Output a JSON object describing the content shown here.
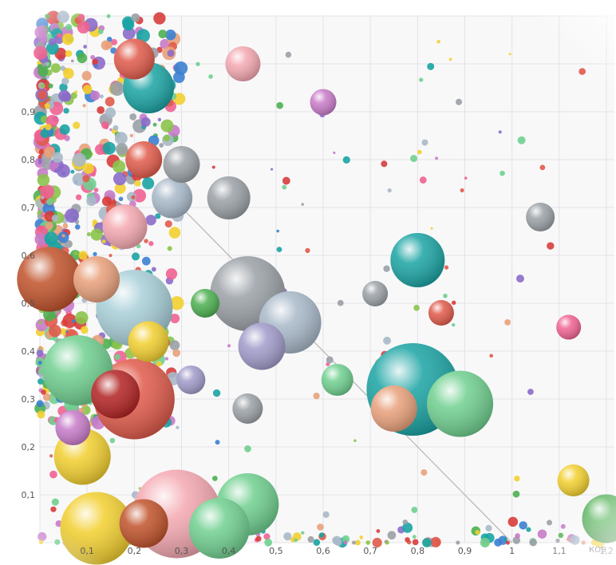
{
  "chart_data": {
    "type": "scatter",
    "subtype": "bubble",
    "xlabel": "КОЭ",
    "ylabel": "",
    "xlim": [
      0.0,
      1.2
    ],
    "ylim": [
      0.0,
      1.0
    ],
    "x_ticks": [
      "0,1",
      "0,2",
      "0,3",
      "0,4",
      "0,5",
      "0,6",
      "0,7",
      "0,8",
      "0,9",
      "1",
      "1,1",
      "1,2"
    ],
    "y_ticks": [
      "0,1",
      "0,2",
      "0,3",
      "0,4",
      "0,5",
      "0,6",
      "0,7",
      "0,8",
      "0,9"
    ],
    "grid": true,
    "legend": "none",
    "reference_line": {
      "from": [
        0.3,
        0.7
      ],
      "to": [
        1.0,
        0.0
      ]
    },
    "colors": [
      "#1aa3a3",
      "#e05a4a",
      "#6fcf8f",
      "#f2cf2e",
      "#a8b8c8",
      "#c77ac8",
      "#e8a07a",
      "#9aa0a6",
      "#3b7fd1",
      "#8a6cc9",
      "#d83c3c",
      "#4caf50",
      "#8bc34a",
      "#f06292"
    ],
    "points": [
      {
        "x": 0.79,
        "y": 0.32,
        "size": 1.0,
        "color": "#1aa3a3"
      },
      {
        "x": 0.89,
        "y": 0.29,
        "size": 0.67,
        "color": "#6fcf8f"
      },
      {
        "x": 0.75,
        "y": 0.28,
        "size": 0.42,
        "color": "#e8a07a"
      },
      {
        "x": 0.8,
        "y": 0.59,
        "size": 0.52,
        "color": "#1aa3a3"
      },
      {
        "x": 0.44,
        "y": 0.52,
        "size": 0.78,
        "color": "#9aa0a6"
      },
      {
        "x": 0.53,
        "y": 0.46,
        "size": 0.62,
        "color": "#a8b8c8"
      },
      {
        "x": 0.47,
        "y": 0.41,
        "size": 0.43,
        "color": "#a09ac9"
      },
      {
        "x": 0.2,
        "y": 0.49,
        "size": 0.8,
        "color": "#a8cfd8"
      },
      {
        "x": 0.2,
        "y": 0.3,
        "size": 0.85,
        "color": "#e05a4a"
      },
      {
        "x": 0.16,
        "y": 0.31,
        "size": 0.45,
        "color": "#b22222"
      },
      {
        "x": 0.08,
        "y": 0.36,
        "size": 0.72,
        "color": "#6fcf8f"
      },
      {
        "x": 0.09,
        "y": 0.18,
        "size": 0.55,
        "color": "#f2cf2e"
      },
      {
        "x": 0.29,
        "y": 0.06,
        "size": 0.95,
        "color": "#f4a7b0"
      },
      {
        "x": 0.44,
        "y": 0.08,
        "size": 0.62,
        "color": "#6fcf8f"
      },
      {
        "x": 0.12,
        "y": 0.03,
        "size": 0.75,
        "color": "#f2cf2e"
      },
      {
        "x": 0.22,
        "y": 0.04,
        "size": 0.45,
        "color": "#c0522a"
      },
      {
        "x": 0.38,
        "y": 0.03,
        "size": 0.6,
        "color": "#6fcf8f"
      },
      {
        "x": 0.23,
        "y": 0.42,
        "size": 0.35,
        "color": "#f2cf2e"
      },
      {
        "x": 0.4,
        "y": 0.72,
        "size": 0.38,
        "color": "#9aa0a6"
      },
      {
        "x": 0.3,
        "y": 0.79,
        "size": 0.3,
        "color": "#9aa0a6"
      },
      {
        "x": 0.28,
        "y": 0.72,
        "size": 0.35,
        "color": "#a8b8c8"
      },
      {
        "x": 0.22,
        "y": 0.8,
        "size": 0.3,
        "color": "#e05a4a"
      },
      {
        "x": 0.23,
        "y": 0.95,
        "size": 0.48,
        "color": "#1aa3a3"
      },
      {
        "x": 0.2,
        "y": 1.01,
        "size": 0.35,
        "color": "#e05a4a"
      },
      {
        "x": 0.43,
        "y": 1.0,
        "size": 0.28,
        "color": "#f4a7b0"
      },
      {
        "x": 1.06,
        "y": 0.68,
        "size": 0.2,
        "color": "#9aa0a6"
      },
      {
        "x": 1.13,
        "y": 0.13,
        "size": 0.24,
        "color": "#f2cf2e"
      },
      {
        "x": 1.2,
        "y": 0.05,
        "size": 0.45,
        "color": "#4caf50"
      },
      {
        "x": 0.63,
        "y": 0.34,
        "size": 0.24,
        "color": "#6fcf8f"
      },
      {
        "x": 0.02,
        "y": 0.55,
        "size": 0.65,
        "color": "#c0522a"
      },
      {
        "x": 0.44,
        "y": 0.28,
        "size": 0.22,
        "color": "#9aa0a6"
      },
      {
        "x": 0.6,
        "y": 0.92,
        "size": 0.17,
        "color": "#c77ac8"
      },
      {
        "x": 0.71,
        "y": 0.52,
        "size": 0.16,
        "color": "#9aa0a6"
      },
      {
        "x": 0.85,
        "y": 0.48,
        "size": 0.16,
        "color": "#e05a4a"
      },
      {
        "x": 1.12,
        "y": 0.45,
        "size": 0.15,
        "color": "#f06292"
      },
      {
        "x": 0.35,
        "y": 0.5,
        "size": 0.2,
        "color": "#4caf50"
      },
      {
        "x": 0.07,
        "y": 0.24,
        "size": 0.28,
        "color": "#c77ac8"
      },
      {
        "x": 0.18,
        "y": 0.66,
        "size": 0.4,
        "color": "#f4a7b0"
      },
      {
        "x": 0.12,
        "y": 0.55,
        "size": 0.42,
        "color": "#e8a07a"
      },
      {
        "x": 0.32,
        "y": 0.34,
        "size": 0.2,
        "color": "#a09ac9"
      }
    ]
  }
}
